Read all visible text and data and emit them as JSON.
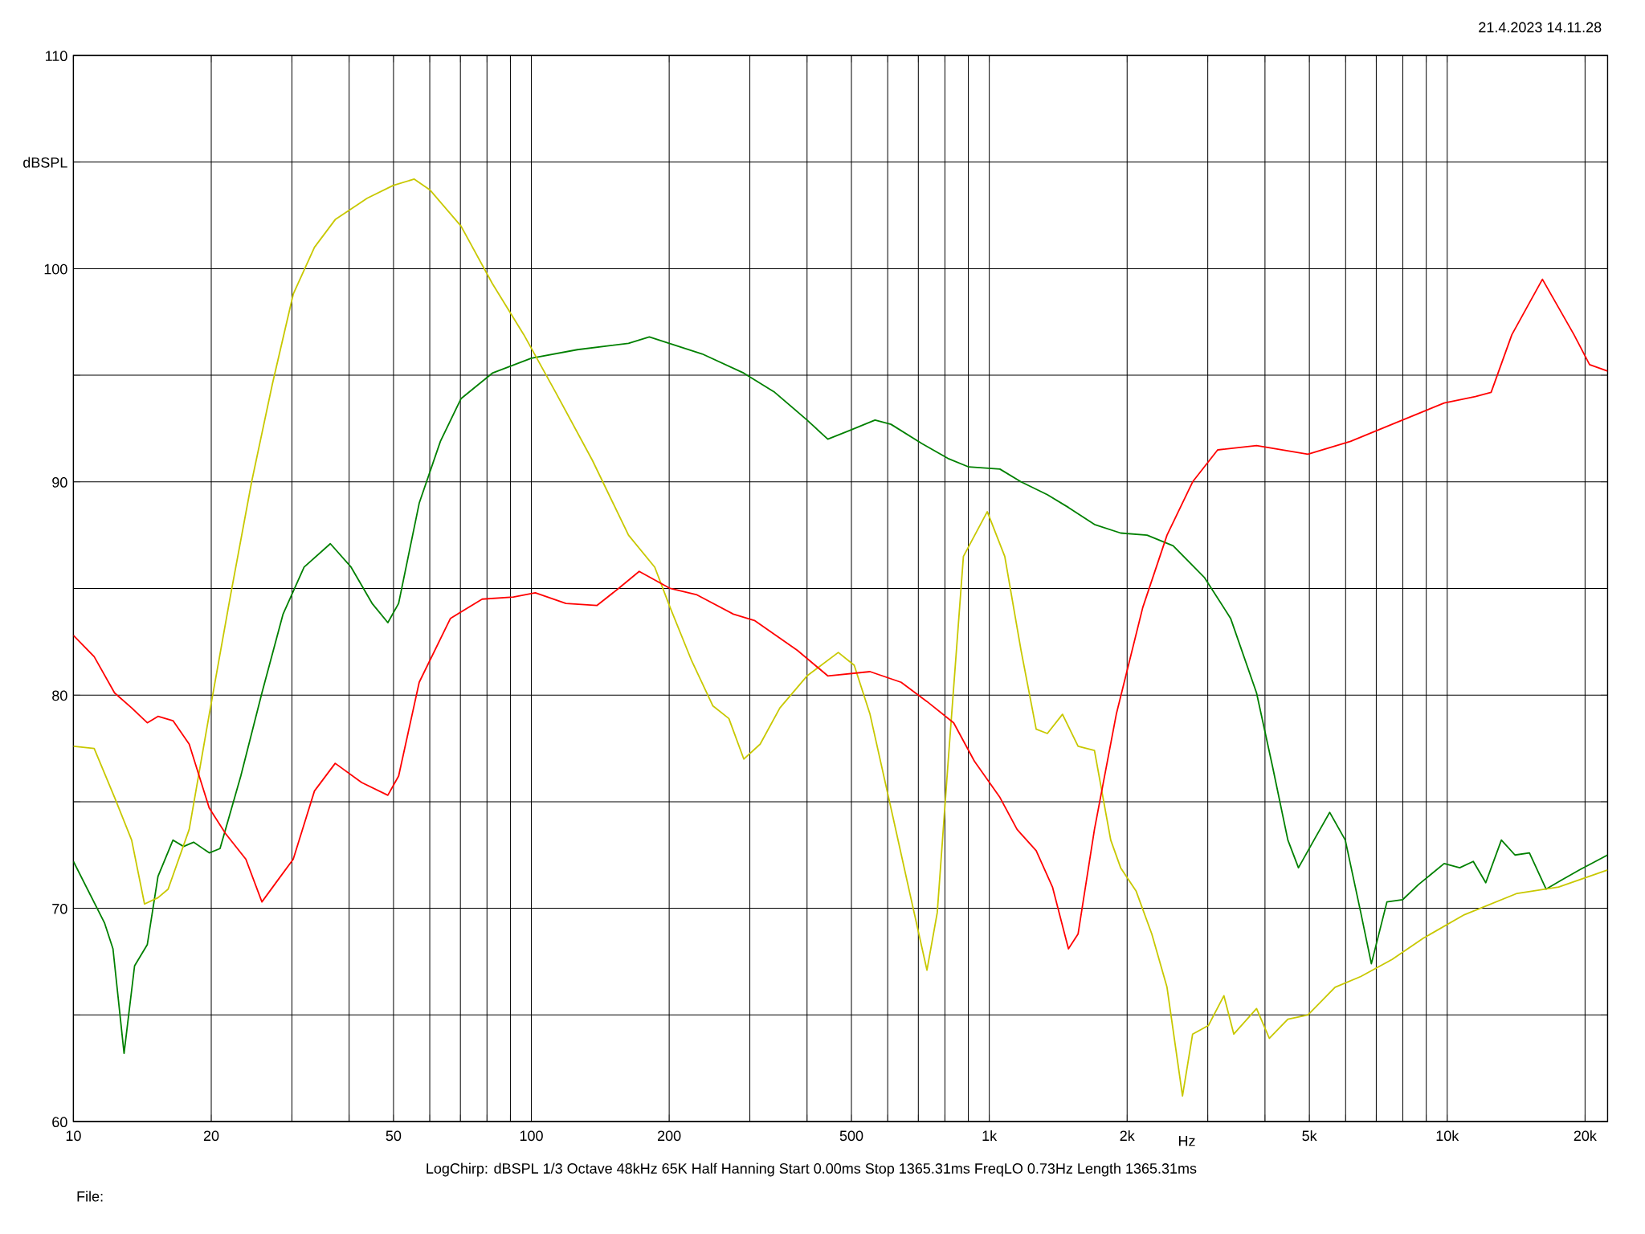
{
  "chart_data": {
    "type": "line",
    "xlabel": "Hz",
    "log": "x",
    "grid": true,
    "xlim": [
      10,
      22400
    ],
    "ylim": [
      60,
      110
    ],
    "xticks": [
      10,
      20,
      {
        "value": 30,
        "label": null
      },
      {
        "value": 40,
        "label": null
      },
      50,
      {
        "value": 60,
        "label": null
      },
      {
        "value": 70,
        "label": null
      },
      {
        "value": 80,
        "label": null
      },
      {
        "value": 90,
        "label": null
      },
      100,
      200,
      {
        "value": 300,
        "label": null
      },
      {
        "value": 400,
        "label": null
      },
      500,
      {
        "value": 600,
        "label": null
      },
      {
        "value": 700,
        "label": null
      },
      {
        "value": 800,
        "label": null
      },
      {
        "value": 900,
        "label": null
      },
      {
        "value": 1000,
        "label": "1k"
      },
      {
        "value": 2000,
        "label": "2k"
      },
      {
        "value": 3000,
        "label": null
      },
      {
        "value": 4000,
        "label": null
      },
      {
        "value": 5000,
        "label": "5k"
      },
      {
        "value": 6000,
        "label": null
      },
      {
        "value": 7000,
        "label": null
      },
      {
        "value": 8000,
        "label": null
      },
      {
        "value": 9000,
        "label": null
      },
      {
        "value": 10000,
        "label": "10k"
      },
      {
        "value": 20000,
        "label": "20k"
      }
    ],
    "yticks": [
      60,
      {
        "value": 65,
        "label": null
      },
      70,
      {
        "value": 75,
        "label": null
      },
      80,
      {
        "value": 85,
        "label": null
      },
      90,
      {
        "value": 95,
        "label": null
      },
      100,
      {
        "value": 105,
        "label": "dBSPL"
      },
      110
    ],
    "annotations": [
      "21.4.2023 14.11.28",
      "LogChirp:  dBSPL   1/3 Octave   48kHz   65K   Half Hanning   Start 0.00ms   Stop 1365.31ms   FreqLO 0.73Hz   Length 1365.31ms",
      "File:"
    ],
    "series": [
      {
        "color": "#008000",
        "x": [
          10,
          11.7,
          12.2,
          12.9,
          13.6,
          14.5,
          15.3,
          16.5,
          17.4,
          18.3,
          19.8,
          20.9,
          23.2,
          25.8,
          28.7,
          31.9,
          36.4,
          40.4,
          44.9,
          48.6,
          51.3,
          56.9,
          63.3,
          70.2,
          82.2,
          100,
          126,
          163,
          181,
          236,
          291,
          340,
          400,
          444,
          494,
          563,
          610,
          712,
          812,
          902,
          1055,
          1173,
          1339,
          1489,
          1697,
          1936,
          2211,
          2521,
          2953,
          3365,
          3834,
          4150,
          4488,
          4733,
          5118,
          5538,
          5990,
          6475,
          6830,
          7386,
          7990,
          8642,
          9848,
          10650,
          11400,
          12140,
          13130,
          14060,
          15120,
          16440,
          17700,
          19450,
          22400
        ],
        "values": [
          72.2,
          69.3,
          68.1,
          63.2,
          67.3,
          68.3,
          71.5,
          73.2,
          72.9,
          73.1,
          72.6,
          72.8,
          76.2,
          80.1,
          83.8,
          86.0,
          87.1,
          86.0,
          84.3,
          83.4,
          84.3,
          89.0,
          91.9,
          93.9,
          95.1,
          95.8,
          96.2,
          96.5,
          96.8,
          96.0,
          95.1,
          94.2,
          92.9,
          92.0,
          92.4,
          92.9,
          92.7,
          91.8,
          91.1,
          90.7,
          90.6,
          90.0,
          89.4,
          88.8,
          88.0,
          87.6,
          87.5,
          87.0,
          85.5,
          83.6,
          80.1,
          76.7,
          73.2,
          71.9,
          73.2,
          74.5,
          73.2,
          69.8,
          67.4,
          70.3,
          70.4,
          71.1,
          72.1,
          71.9,
          72.2,
          71.2,
          73.2,
          72.5,
          72.6,
          70.9,
          71.3,
          71.8,
          72.5
        ]
      },
      {
        "color": "#c8c800",
        "x": [
          10,
          11.1,
          12.3,
          13.4,
          14.3,
          15.3,
          16.1,
          17.9,
          19.8,
          22.0,
          24.5,
          27.2,
          30.2,
          33.6,
          37.3,
          43.8,
          49.9,
          55.5,
          60.0,
          70.2,
          82.2,
          96.3,
          113,
          136,
          163,
          186,
          201,
          224,
          249,
          270,
          291,
          316,
          349,
          400,
          468,
          507,
          549,
          610,
          674,
          731,
          770,
          812,
          878,
          990,
          1081,
          1173,
          1266,
          1339,
          1445,
          1563,
          1697,
          1842,
          1936,
          2093,
          2264,
          2444,
          2642,
          2780,
          3009,
          3254,
          3420,
          3834,
          4089,
          4488,
          4963,
          5690,
          6475,
          7580,
          8870,
          10900,
          14210,
          17510,
          22400
        ],
        "values": [
          77.6,
          77.5,
          75.2,
          73.2,
          70.2,
          70.5,
          70.9,
          73.7,
          79.1,
          84.6,
          90.0,
          94.6,
          98.8,
          101.0,
          102.3,
          103.3,
          103.9,
          104.2,
          103.7,
          102.0,
          99.3,
          96.9,
          94.2,
          91.0,
          87.5,
          86.0,
          84.1,
          81.6,
          79.5,
          78.9,
          77.0,
          77.7,
          79.4,
          80.9,
          82.0,
          81.4,
          79.1,
          74.7,
          70.5,
          67.1,
          69.8,
          76.7,
          86.5,
          88.6,
          86.5,
          82.1,
          78.4,
          78.2,
          79.1,
          77.6,
          77.4,
          73.2,
          71.9,
          70.8,
          68.8,
          66.3,
          61.2,
          64.1,
          64.5,
          65.9,
          64.1,
          65.3,
          63.9,
          64.8,
          65.0,
          66.3,
          66.8,
          67.6,
          68.6,
          69.7,
          70.7,
          71.0,
          71.8
        ]
      },
      {
        "color": "#ff0000",
        "x": [
          10,
          11.1,
          12.3,
          13.4,
          14.5,
          15.3,
          16.5,
          17.9,
          19.8,
          21.5,
          23.8,
          25.8,
          27.9,
          30.2,
          33.6,
          37.3,
          42.6,
          48.6,
          51.3,
          56.9,
          66.6,
          78.1,
          91.4,
          102,
          119,
          139,
          155,
          172,
          201,
          230,
          276,
          307,
          381,
          444,
          549,
          642,
          731,
          836,
          928,
          1055,
          1150,
          1266,
          1374,
          1489,
          1563,
          1697,
          1894,
          2163,
          2444,
          2780,
          3153,
          3834,
          4963,
          6150,
          7580,
          9848,
          11520,
          12470,
          13840,
          16140,
          18920,
          20460,
          22400
        ],
        "values": [
          82.8,
          81.8,
          80.1,
          79.4,
          78.7,
          79.0,
          78.8,
          77.7,
          74.7,
          73.5,
          72.3,
          70.3,
          71.3,
          72.3,
          75.5,
          76.8,
          75.9,
          75.3,
          76.2,
          80.6,
          83.6,
          84.5,
          84.6,
          84.8,
          84.3,
          84.2,
          85.0,
          85.8,
          85.0,
          84.7,
          83.8,
          83.5,
          82.1,
          80.9,
          81.1,
          80.6,
          79.7,
          78.7,
          76.9,
          75.2,
          73.7,
          72.7,
          71.0,
          68.1,
          68.8,
          73.7,
          79.1,
          84.1,
          87.5,
          90.0,
          91.5,
          91.7,
          91.3,
          91.9,
          92.7,
          93.7,
          94.0,
          94.2,
          96.9,
          99.5,
          96.9,
          95.5,
          95.2
        ]
      }
    ]
  }
}
